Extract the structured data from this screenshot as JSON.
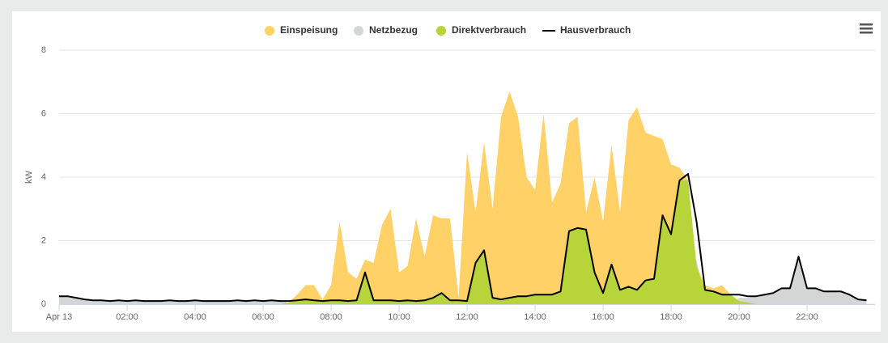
{
  "chart_data": {
    "type": "area",
    "y_label": "kW",
    "x": [
      0,
      0.25,
      0.5,
      0.75,
      1,
      1.25,
      1.5,
      1.75,
      2,
      2.25,
      2.5,
      2.75,
      3,
      3.25,
      3.5,
      3.75,
      4,
      4.25,
      4.5,
      4.75,
      5,
      5.25,
      5.5,
      5.75,
      6,
      6.25,
      6.5,
      6.75,
      7,
      7.25,
      7.5,
      7.75,
      8,
      8.25,
      8.5,
      8.75,
      9,
      9.25,
      9.5,
      9.75,
      10,
      10.25,
      10.5,
      10.75,
      11,
      11.25,
      11.5,
      11.75,
      12,
      12.25,
      12.5,
      12.75,
      13,
      13.25,
      13.5,
      13.75,
      14,
      14.25,
      14.5,
      14.75,
      15,
      15.25,
      15.5,
      15.75,
      16,
      16.25,
      16.5,
      16.75,
      17,
      17.25,
      17.5,
      17.75,
      18,
      18.25,
      18.5,
      18.75,
      19,
      19.25,
      19.5,
      19.75,
      20,
      20.25,
      20.5,
      20.75,
      21,
      21.25,
      21.5,
      21.75,
      22,
      22.25,
      22.5,
      22.75,
      23,
      23.25,
      23.5,
      23.75
    ],
    "series": [
      {
        "name": "Einspeisung",
        "color": "#ffd166",
        "style": "area",
        "values": [
          0,
          0,
          0,
          0,
          0,
          0,
          0,
          0,
          0,
          0,
          0,
          0,
          0,
          0,
          0,
          0,
          0,
          0,
          0,
          0,
          0,
          0,
          0,
          0,
          0,
          0,
          0,
          0.05,
          0.3,
          0.6,
          0.6,
          0.15,
          0.6,
          2.6,
          1.0,
          0.8,
          1.4,
          1.3,
          2.5,
          3.0,
          1.0,
          1.2,
          2.7,
          1.5,
          2.8,
          2.7,
          2.7,
          0.2,
          4.8,
          2.9,
          5.1,
          3.0,
          5.9,
          6.7,
          5.9,
          4.0,
          3.6,
          6.0,
          3.2,
          3.8,
          5.7,
          5.9,
          2.9,
          4.0,
          2.6,
          5.0,
          2.9,
          5.8,
          6.2,
          5.4,
          5.3,
          5.2,
          4.4,
          4.3,
          3.9,
          1.2,
          0.6,
          0.5,
          0.6,
          0.3,
          0.1,
          0.05,
          0,
          0,
          0,
          0,
          0,
          0,
          0,
          0,
          0,
          0,
          0,
          0,
          0,
          0
        ]
      },
      {
        "name": "Netzbezug",
        "color": "#d4d6d6",
        "style": "area",
        "values": [
          0.25,
          0.25,
          0.2,
          0.15,
          0.12,
          0.12,
          0.1,
          0.12,
          0.1,
          0.12,
          0.1,
          0.1,
          0.1,
          0.12,
          0.1,
          0.1,
          0.12,
          0.1,
          0.1,
          0.1,
          0.1,
          0.12,
          0.1,
          0.12,
          0.1,
          0.12,
          0.1,
          0.05,
          0,
          0,
          0,
          0,
          0,
          0,
          0,
          0,
          0,
          0,
          0,
          0,
          0,
          0,
          0,
          0,
          0,
          0,
          0,
          0,
          0,
          0,
          0,
          0,
          0,
          0,
          0,
          0,
          0,
          0,
          0,
          0,
          0,
          0,
          0,
          0,
          0,
          0,
          0,
          0,
          0,
          0,
          0,
          0,
          0,
          0,
          0.2,
          1.4,
          0,
          0,
          0,
          0,
          0.2,
          0.2,
          0.25,
          0.3,
          0.35,
          0.5,
          0.5,
          1.5,
          0.5,
          0.5,
          0.4,
          0.4,
          0.4,
          0.3,
          0.15,
          0.12
        ]
      },
      {
        "name": "Direktverbrauch",
        "color": "#b7d43a",
        "style": "area",
        "values": [
          0,
          0,
          0,
          0,
          0,
          0,
          0,
          0,
          0,
          0,
          0,
          0,
          0,
          0,
          0,
          0,
          0,
          0,
          0,
          0,
          0,
          0,
          0,
          0,
          0,
          0,
          0,
          0.05,
          0.12,
          0.15,
          0.12,
          0.1,
          0.12,
          0.12,
          0.1,
          0.12,
          1.0,
          0.12,
          0.12,
          0.12,
          0.1,
          0.12,
          0.1,
          0.12,
          0.2,
          0.35,
          0.12,
          0.12,
          0.1,
          1.3,
          1.7,
          0.2,
          0.15,
          0.2,
          0.25,
          0.25,
          0.3,
          0.3,
          0.3,
          0.4,
          2.3,
          2.4,
          2.35,
          1.0,
          0.35,
          1.25,
          0.45,
          0.55,
          0.45,
          0.75,
          0.8,
          2.8,
          2.2,
          3.9,
          3.9,
          1.2,
          0.45,
          0.4,
          0.3,
          0.3,
          0.1,
          0.05,
          0,
          0,
          0,
          0,
          0,
          0,
          0,
          0,
          0,
          0,
          0,
          0,
          0,
          0
        ]
      },
      {
        "name": "Hausverbrauch",
        "color": "#000000",
        "style": "line",
        "values": [
          0.25,
          0.25,
          0.2,
          0.15,
          0.12,
          0.12,
          0.1,
          0.12,
          0.1,
          0.12,
          0.1,
          0.1,
          0.1,
          0.12,
          0.1,
          0.1,
          0.12,
          0.1,
          0.1,
          0.1,
          0.1,
          0.12,
          0.1,
          0.12,
          0.1,
          0.12,
          0.1,
          0.1,
          0.12,
          0.15,
          0.12,
          0.1,
          0.12,
          0.12,
          0.1,
          0.12,
          1.0,
          0.12,
          0.12,
          0.12,
          0.1,
          0.12,
          0.1,
          0.12,
          0.2,
          0.35,
          0.12,
          0.12,
          0.1,
          1.3,
          1.7,
          0.2,
          0.15,
          0.2,
          0.25,
          0.25,
          0.3,
          0.3,
          0.3,
          0.4,
          2.3,
          2.4,
          2.35,
          1.0,
          0.35,
          1.25,
          0.45,
          0.55,
          0.45,
          0.75,
          0.8,
          2.8,
          2.2,
          3.9,
          4.1,
          2.6,
          0.45,
          0.4,
          0.3,
          0.3,
          0.3,
          0.25,
          0.25,
          0.3,
          0.35,
          0.5,
          0.5,
          1.5,
          0.5,
          0.5,
          0.4,
          0.4,
          0.4,
          0.3,
          0.15,
          0.12
        ]
      }
    ],
    "xlim": [
      0,
      24
    ],
    "xticks": [
      {
        "value": 0,
        "label": "Apr 13"
      },
      {
        "value": 2,
        "label": "02:00"
      },
      {
        "value": 4,
        "label": "04:00"
      },
      {
        "value": 6,
        "label": "06:00"
      },
      {
        "value": 8,
        "label": "08:00"
      },
      {
        "value": 10,
        "label": "10:00"
      },
      {
        "value": 12,
        "label": "12:00"
      },
      {
        "value": 14,
        "label": "14:00"
      },
      {
        "value": 16,
        "label": "16:00"
      },
      {
        "value": 18,
        "label": "18:00"
      },
      {
        "value": 20,
        "label": "20:00"
      },
      {
        "value": 22,
        "label": "22:00"
      }
    ],
    "ylim": [
      0,
      8
    ],
    "yticks": [
      0,
      2,
      4,
      6,
      8
    ],
    "grid": true,
    "legend": "top"
  }
}
